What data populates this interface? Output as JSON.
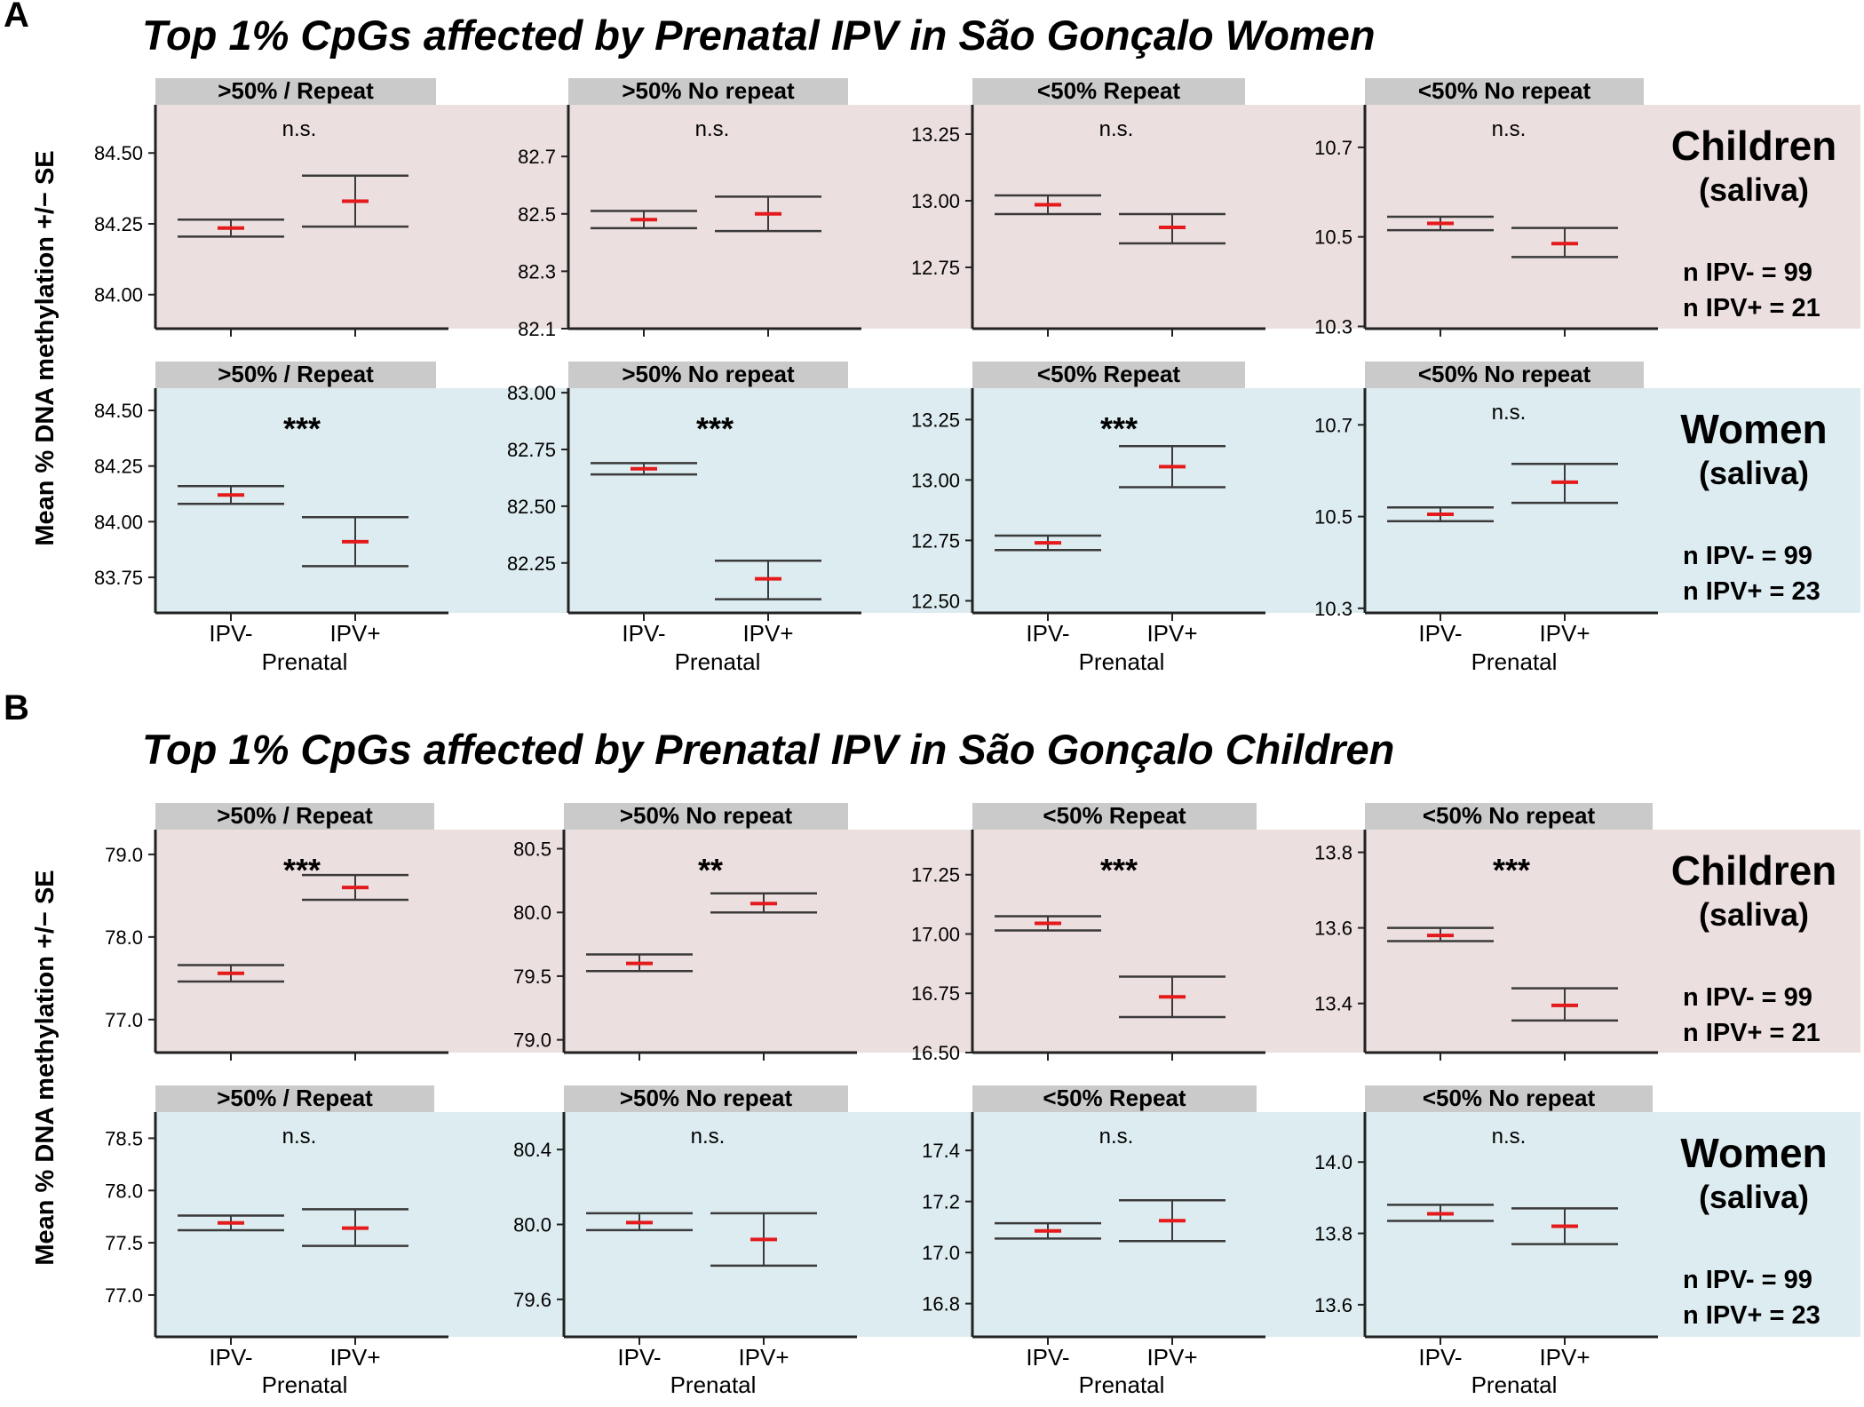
{
  "colors": {
    "children_bg": "#ecdfdf",
    "women_bg": "#ddecf0",
    "strip_bg": "#cacaca",
    "errorbar": "#3a3a3a",
    "mean": "#e41a1c",
    "axis": "#222222"
  },
  "panels": [
    {
      "letter": "A",
      "title": "Top 1% CpGs affected by Prenatal IPV in São Gonçalo Women",
      "ylabel": "Mean % DNA methylation +/− SE",
      "x_axis_title": "Prenatal",
      "x_categories": [
        "IPV-",
        "IPV+"
      ],
      "rows": [
        {
          "group": "Children",
          "sub": "(saliva)",
          "n_neg": "n IPV-  = 99",
          "n_pos": "n IPV+ = 21",
          "bg": "children",
          "facets": [
            {
              "strip": ">50% / Repeat",
              "ylim": [
                83.88,
                84.67
              ],
              "ticks": [
                84.0,
                84.25,
                84.5
              ],
              "tick_labels": [
                "84.00",
                "84.25",
                "84.50"
              ],
              "sig": "n.s.",
              "points": [
                {
                  "x": "IPV-",
                  "mean": 84.235,
                  "lo": 84.205,
                  "hi": 84.265
                },
                {
                  "x": "IPV+",
                  "mean": 84.33,
                  "lo": 84.24,
                  "hi": 84.42
                }
              ]
            },
            {
              "strip": ">50% No repeat",
              "ylim": [
                82.1,
                82.88
              ],
              "ticks": [
                82.1,
                82.3,
                82.5,
                82.7
              ],
              "tick_labels": [
                "82.1",
                "82.3",
                "82.5",
                "82.7"
              ],
              "sig": "n.s.",
              "points": [
                {
                  "x": "IPV-",
                  "mean": 82.48,
                  "lo": 82.45,
                  "hi": 82.51
                },
                {
                  "x": "IPV+",
                  "mean": 82.5,
                  "lo": 82.44,
                  "hi": 82.56
                }
              ]
            },
            {
              "strip": "<50% Repeat",
              "ylim": [
                12.52,
                13.36
              ],
              "ticks": [
                12.75,
                13.0,
                13.25
              ],
              "tick_labels": [
                "12.75",
                "13.00",
                "13.25"
              ],
              "sig": "n.s.",
              "points": [
                {
                  "x": "IPV-",
                  "mean": 12.985,
                  "lo": 12.95,
                  "hi": 13.02
                },
                {
                  "x": "IPV+",
                  "mean": 12.9,
                  "lo": 12.84,
                  "hi": 12.95
                }
              ]
            },
            {
              "strip": "<50% No repeat",
              "ylim": [
                10.295,
                10.795
              ],
              "ticks": [
                10.3,
                10.5,
                10.7
              ],
              "tick_labels": [
                "10.3",
                "10.5",
                "10.7"
              ],
              "sig": "n.s.",
              "points": [
                {
                  "x": "IPV-",
                  "mean": 10.53,
                  "lo": 10.515,
                  "hi": 10.545
                },
                {
                  "x": "IPV+",
                  "mean": 10.485,
                  "lo": 10.455,
                  "hi": 10.52
                }
              ]
            }
          ]
        },
        {
          "group": "Women",
          "sub": "(saliva)",
          "n_neg": "n IPV-  = 99",
          "n_pos": "n IPV+ = 23",
          "bg": "women",
          "facets": [
            {
              "strip": ">50% / Repeat",
              "ylim": [
                83.59,
                84.6
              ],
              "ticks": [
                83.75,
                84.0,
                84.25,
                84.5
              ],
              "tick_labels": [
                "83.75",
                "84.00",
                "84.25",
                "84.50"
              ],
              "sig": "***",
              "points": [
                {
                  "x": "IPV-",
                  "mean": 84.12,
                  "lo": 84.08,
                  "hi": 84.16
                },
                {
                  "x": "IPV+",
                  "mean": 83.91,
                  "lo": 83.8,
                  "hi": 84.02
                }
              ]
            },
            {
              "strip": ">50% No repeat",
              "ylim": [
                82.03,
                83.02
              ],
              "ticks": [
                82.25,
                82.5,
                82.75,
                83.0
              ],
              "tick_labels": [
                "82.25",
                "82.50",
                "82.75",
                "83.00"
              ],
              "sig": "***",
              "points": [
                {
                  "x": "IPV-",
                  "mean": 82.665,
                  "lo": 82.64,
                  "hi": 82.69
                },
                {
                  "x": "IPV+",
                  "mean": 82.18,
                  "lo": 82.09,
                  "hi": 82.26
                }
              ]
            },
            {
              "strip": "<50% Repeat",
              "ylim": [
                12.45,
                13.38
              ],
              "ticks": [
                12.5,
                12.75,
                13.0,
                13.25
              ],
              "tick_labels": [
                "12.50",
                "12.75",
                "13.00",
                "13.25"
              ],
              "sig": "***",
              "points": [
                {
                  "x": "IPV-",
                  "mean": 12.74,
                  "lo": 12.71,
                  "hi": 12.77
                },
                {
                  "x": "IPV+",
                  "mean": 13.055,
                  "lo": 12.97,
                  "hi": 13.14
                }
              ]
            },
            {
              "strip": "<50% No repeat",
              "ylim": [
                10.29,
                10.78
              ],
              "ticks": [
                10.3,
                10.5,
                10.7
              ],
              "tick_labels": [
                "10.3",
                "10.5",
                "10.7"
              ],
              "sig": "n.s.",
              "points": [
                {
                  "x": "IPV-",
                  "mean": 10.505,
                  "lo": 10.49,
                  "hi": 10.52
                },
                {
                  "x": "IPV+",
                  "mean": 10.575,
                  "lo": 10.53,
                  "hi": 10.615
                }
              ]
            }
          ]
        }
      ]
    },
    {
      "letter": "B",
      "title": "Top 1% CpGs affected by Prenatal IPV in São Gonçalo Children",
      "ylabel": "Mean % DNA methylation +/− SE",
      "x_axis_title": "Prenatal",
      "x_categories": [
        "IPV-",
        "IPV+"
      ],
      "rows": [
        {
          "group": "Children",
          "sub": "(saliva)",
          "n_neg": "n IPV-  = 99",
          "n_pos": "n IPV+ = 21",
          "bg": "children",
          "facets": [
            {
              "strip": ">50% / Repeat",
              "ylim": [
                76.6,
                79.3
              ],
              "ticks": [
                77.0,
                78.0,
                79.0
              ],
              "tick_labels": [
                "77.0",
                "78.0",
                "79.0"
              ],
              "sig": "***",
              "points": [
                {
                  "x": "IPV-",
                  "mean": 77.56,
                  "lo": 77.46,
                  "hi": 77.66
                },
                {
                  "x": "IPV+",
                  "mean": 78.6,
                  "lo": 78.45,
                  "hi": 78.75
                }
              ]
            },
            {
              "strip": ">50% No repeat",
              "ylim": [
                78.9,
                80.65
              ],
              "ticks": [
                79.0,
                79.5,
                80.0,
                80.5
              ],
              "tick_labels": [
                "79.0",
                "79.5",
                "80.0",
                "80.5"
              ],
              "sig": "**",
              "points": [
                {
                  "x": "IPV-",
                  "mean": 79.6,
                  "lo": 79.54,
                  "hi": 79.67
                },
                {
                  "x": "IPV+",
                  "mean": 80.07,
                  "lo": 80.0,
                  "hi": 80.15
                }
              ]
            },
            {
              "strip": "<50% Repeat",
              "ylim": [
                16.5,
                17.44
              ],
              "ticks": [
                16.5,
                16.75,
                17.0,
                17.25
              ],
              "tick_labels": [
                "16.50",
                "16.75",
                "17.00",
                "17.25"
              ],
              "sig": "***",
              "points": [
                {
                  "x": "IPV-",
                  "mean": 17.045,
                  "lo": 17.015,
                  "hi": 17.075
                },
                {
                  "x": "IPV+",
                  "mean": 16.735,
                  "lo": 16.65,
                  "hi": 16.82
                }
              ]
            },
            {
              "strip": "<50% No repeat",
              "ylim": [
                13.27,
                13.86
              ],
              "ticks": [
                13.4,
                13.6,
                13.8
              ],
              "tick_labels": [
                "13.4",
                "13.6",
                "13.8"
              ],
              "sig": "***",
              "points": [
                {
                  "x": "IPV-",
                  "mean": 13.58,
                  "lo": 13.565,
                  "hi": 13.6
                },
                {
                  "x": "IPV+",
                  "mean": 13.395,
                  "lo": 13.355,
                  "hi": 13.44
                }
              ]
            }
          ]
        },
        {
          "group": "Women",
          "sub": "(saliva)",
          "n_neg": "n IPV-  = 99",
          "n_pos": "n IPV+ = 23",
          "bg": "women",
          "facets": [
            {
              "strip": ">50% / Repeat",
              "ylim": [
                76.6,
                78.75
              ],
              "ticks": [
                77.0,
                77.5,
                78.0,
                78.5
              ],
              "tick_labels": [
                "77.0",
                "77.5",
                "78.0",
                "78.5"
              ],
              "sig": "n.s.",
              "points": [
                {
                  "x": "IPV-",
                  "mean": 77.69,
                  "lo": 77.62,
                  "hi": 77.76
                },
                {
                  "x": "IPV+",
                  "mean": 77.64,
                  "lo": 77.47,
                  "hi": 77.82
                }
              ]
            },
            {
              "strip": ">50% No repeat",
              "ylim": [
                79.4,
                80.6
              ],
              "ticks": [
                79.6,
                80.0,
                80.4
              ],
              "tick_labels": [
                "79.6",
                "80.0",
                "80.4"
              ],
              "sig": "n.s.",
              "points": [
                {
                  "x": "IPV-",
                  "mean": 80.01,
                  "lo": 79.97,
                  "hi": 80.06
                },
                {
                  "x": "IPV+",
                  "mean": 79.92,
                  "lo": 79.78,
                  "hi": 80.06
                }
              ]
            },
            {
              "strip": "<50% Repeat",
              "ylim": [
                16.67,
                17.55
              ],
              "ticks": [
                16.8,
                17.0,
                17.2,
                17.4
              ],
              "tick_labels": [
                "16.8",
                "17.0",
                "17.2",
                "17.4"
              ],
              "sig": "n.s.",
              "points": [
                {
                  "x": "IPV-",
                  "mean": 17.085,
                  "lo": 17.055,
                  "hi": 17.115
                },
                {
                  "x": "IPV+",
                  "mean": 17.125,
                  "lo": 17.045,
                  "hi": 17.205
                }
              ]
            },
            {
              "strip": "<50% No repeat",
              "ylim": [
                13.51,
                14.14
              ],
              "ticks": [
                13.6,
                13.8,
                14.0
              ],
              "tick_labels": [
                "13.6",
                "13.8",
                "14.0"
              ],
              "sig": "n.s.",
              "points": [
                {
                  "x": "IPV-",
                  "mean": 13.855,
                  "lo": 13.835,
                  "hi": 13.88
                },
                {
                  "x": "IPV+",
                  "mean": 13.82,
                  "lo": 13.77,
                  "hi": 13.87
                }
              ]
            }
          ]
        }
      ]
    }
  ]
}
